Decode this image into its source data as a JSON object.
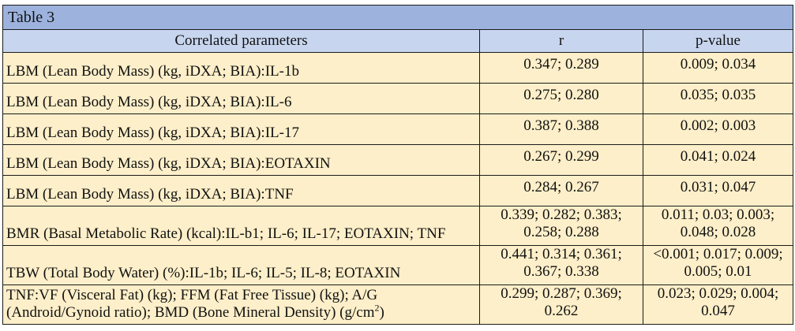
{
  "table": {
    "caption": "Table 3",
    "headers": [
      "Correlated parameters",
      "r",
      "p-value"
    ],
    "rows": [
      {
        "param": "LBM (Lean Body Mass) (kg, iDXA; BIA):IL-1b",
        "r": "0.347; 0.289",
        "p": "0.009; 0.034"
      },
      {
        "param": "LBM (Lean Body Mass) (kg, iDXA; BIA):IL-6",
        "r": "0.275; 0.280",
        "p": "0.035; 0.035"
      },
      {
        "param": "LBM (Lean Body Mass) (kg, iDXA; BIA):IL-17",
        "r": "0.387; 0.388",
        "p": "0.002; 0.003"
      },
      {
        "param": "LBM (Lean Body Mass) (kg, iDXA; BIA):EOTAXIN",
        "r": "0.267; 0.299",
        "p": "0.041; 0.024"
      },
      {
        "param": "LBM (Lean Body Mass) (kg, iDXA; BIA):TNF",
        "r": "0.284; 0.267",
        "p": "0.031; 0.047"
      },
      {
        "param": "BMR (Basal Metabolic Rate) (kcal):IL-b1; IL-6; IL-17; EOTAXIN; TNF",
        "r": "0.339; 0.282; 0.383; 0.258; 0.288",
        "p": "0.011; 0.03; 0.003; 0.048; 0.028"
      },
      {
        "param": "TBW (Total Body Water) (%):IL-1b; IL-6; IL-5; IL-8; EOTAXIN",
        "r": "0.441; 0.314; 0.361; 0.367; 0.338",
        "p": "<0.001; 0.017; 0.009; 0.005; 0.01"
      },
      {
        "param": "TNF:VF (Visceral Fat) (kg); FFM (Fat Free Tissue) (kg); A/G (Android/Gynoid ratio); BMD (Bone Mineral Density) (g/cm",
        "param_sup": "2",
        "param_tail": ")",
        "r": "0.299; 0.287; 0.369; 0.262",
        "p": "0.023; 0.029; 0.004; 0.047"
      }
    ]
  }
}
